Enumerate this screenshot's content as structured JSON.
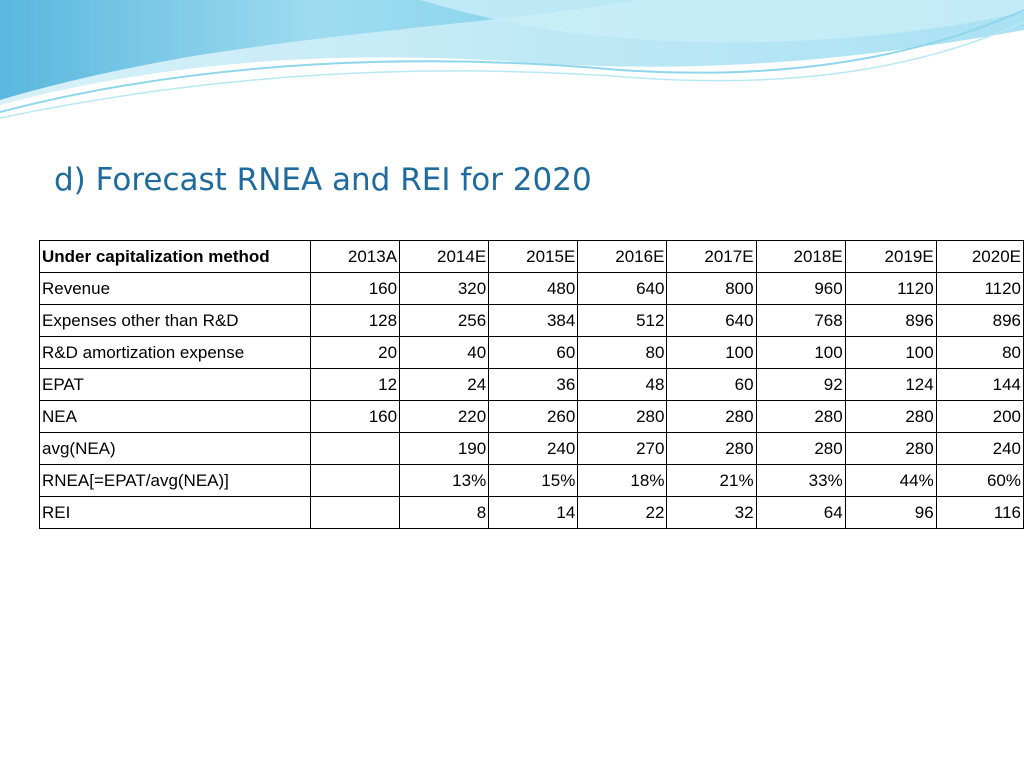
{
  "slide": {
    "title": "d) Forecast RNEA and REI for 2020"
  },
  "table": {
    "header": {
      "label": "Under capitalization method",
      "years": [
        "2013A",
        "2014E",
        "2015E",
        "2016E",
        "2017E",
        "2018E",
        "2019E",
        "2020E"
      ]
    },
    "rows": [
      {
        "label": "Revenue",
        "values": [
          "160",
          "320",
          "480",
          "640",
          "800",
          "960",
          "1120",
          "1120"
        ]
      },
      {
        "label": "Expenses other than R&D",
        "values": [
          "128",
          "256",
          "384",
          "512",
          "640",
          "768",
          "896",
          "896"
        ]
      },
      {
        "label": "R&D amortization expense",
        "values": [
          "20",
          "40",
          "60",
          "80",
          "100",
          "100",
          "100",
          "80"
        ]
      },
      {
        "label": "EPAT",
        "values": [
          "12",
          "24",
          "36",
          "48",
          "60",
          "92",
          "124",
          "144"
        ]
      },
      {
        "label": "NEA",
        "values": [
          "160",
          "220",
          "260",
          "280",
          "280",
          "280",
          "280",
          "200"
        ]
      },
      {
        "label": "avg(NEA)",
        "values": [
          "",
          "190",
          "240",
          "270",
          "280",
          "280",
          "280",
          "240"
        ]
      },
      {
        "label": "RNEA[=EPAT/avg(NEA)]",
        "values": [
          "",
          "13%",
          "15%",
          "18%",
          "21%",
          "33%",
          "44%",
          "60%"
        ]
      },
      {
        "label": "REI",
        "values": [
          "",
          "8",
          "14",
          "22",
          "32",
          "64",
          "96",
          "116"
        ]
      }
    ]
  },
  "colors": {
    "title": "#1f6b9e",
    "wave_light": "#b5e4f2",
    "wave_mid": "#7fd0ea",
    "wave_dark": "#5ab7de"
  }
}
